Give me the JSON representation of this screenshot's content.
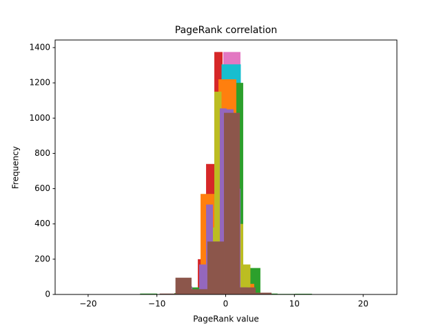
{
  "chart_data": {
    "type": "histogram",
    "title": "PageRank correlation",
    "x_label": "PageRank value",
    "y_label": "Frequency",
    "xlim": [
      -24.8,
      24.9
    ],
    "ylim": [
      0,
      1443
    ],
    "xticks": [
      {
        "value": -20,
        "label": "−20"
      },
      {
        "value": -10,
        "label": "−10"
      },
      0,
      10,
      20
    ],
    "yticks": [
      0,
      200,
      400,
      600,
      800,
      1000,
      1200,
      1400
    ],
    "series": [
      {
        "color": "#d62728",
        "bins": [
          -4.05,
          -2.85,
          -1.65,
          -0.45,
          0.75
        ],
        "values": [
          200,
          740,
          1375,
          300
        ]
      },
      {
        "color": "#e377c2",
        "bins": [
          -5.35,
          -2.85,
          -0.35,
          2.15,
          4.65
        ],
        "values": [
          10,
          200,
          1375,
          40
        ]
      },
      {
        "color": "#17becf",
        "bins": [
          -3.4,
          -0.6,
          2.2,
          5.0
        ],
        "values": [
          200,
          1305,
          55
        ]
      },
      {
        "color": "#2ca02c",
        "bins": [
          -12.45,
          -9.95,
          -7.45,
          -4.95,
          -2.45,
          0.05,
          2.55,
          5.05,
          7.55,
          10.05,
          12.55
        ],
        "values": [
          5,
          2,
          8,
          40,
          280,
          1200,
          150,
          5,
          3,
          4
        ]
      },
      {
        "color": "#ff7f0e",
        "bins": [
          -6.25,
          -3.65,
          -1.05,
          1.55,
          4.15
        ],
        "values": [
          25,
          570,
          1220,
          60
        ]
      },
      {
        "color": "#bcbd22",
        "bins": [
          -3.75,
          -2.7,
          -1.65,
          -0.6,
          0.45,
          1.5,
          2.55,
          3.6
        ],
        "values": [
          110,
          380,
          1150,
          900,
          700,
          400,
          170
        ]
      },
      {
        "color": "#9467bd",
        "bins": [
          -5.85,
          -4.85,
          -3.85,
          -2.85,
          -1.85,
          -0.85,
          0.15,
          1.15,
          2.15,
          3.15
        ],
        "values": [
          45,
          20,
          170,
          510,
          300,
          1055,
          1050,
          600,
          40
        ]
      },
      {
        "color": "#8c564b",
        "bins": [
          -9.6,
          -7.3,
          -4.96,
          -2.66,
          -0.25,
          2.06,
          4.36,
          6.67
        ],
        "values": [
          5,
          95,
          30,
          300,
          1030,
          40,
          10
        ]
      }
    ]
  }
}
